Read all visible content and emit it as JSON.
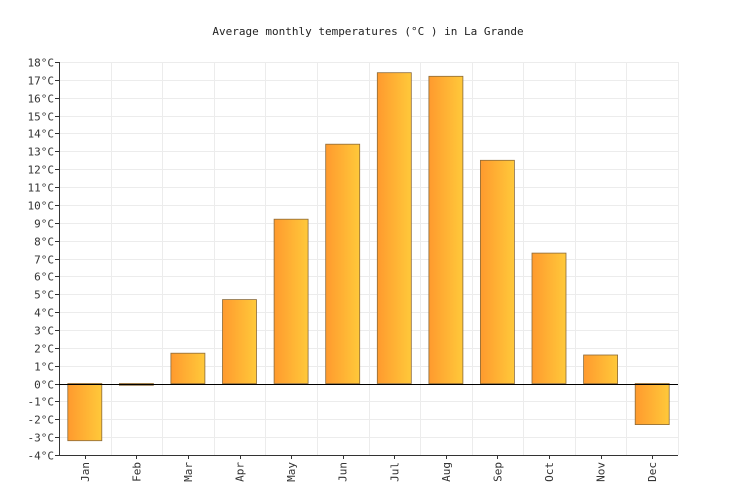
{
  "chart_data": {
    "type": "bar",
    "title": "Average monthly temperatures (°C ) in La Grande",
    "xlabel": "",
    "ylabel": "",
    "categories": [
      "Jan",
      "Feb",
      "Mar",
      "Apr",
      "May",
      "Jun",
      "Jul",
      "Aug",
      "Sep",
      "Oct",
      "Nov",
      "Dec"
    ],
    "values": [
      -3.2,
      -0.1,
      1.7,
      4.7,
      9.2,
      13.4,
      17.4,
      17.2,
      12.5,
      7.3,
      1.6,
      -2.3
    ],
    "ylim": [
      -4,
      18
    ],
    "yticks": [
      "-4°C",
      "-3°C",
      "-2°C",
      "-1°C",
      "0°C",
      "1°C",
      "2°C",
      "3°C",
      "4°C",
      "5°C",
      "6°C",
      "7°C",
      "8°C",
      "9°C",
      "10°C",
      "11°C",
      "12°C",
      "13°C",
      "14°C",
      "15°C",
      "16°C",
      "17°C",
      "18°C"
    ],
    "grid": true,
    "legend": "none",
    "colors": {
      "bar_start": "#ff9a2e",
      "bar_end": "#ffc93a"
    }
  }
}
